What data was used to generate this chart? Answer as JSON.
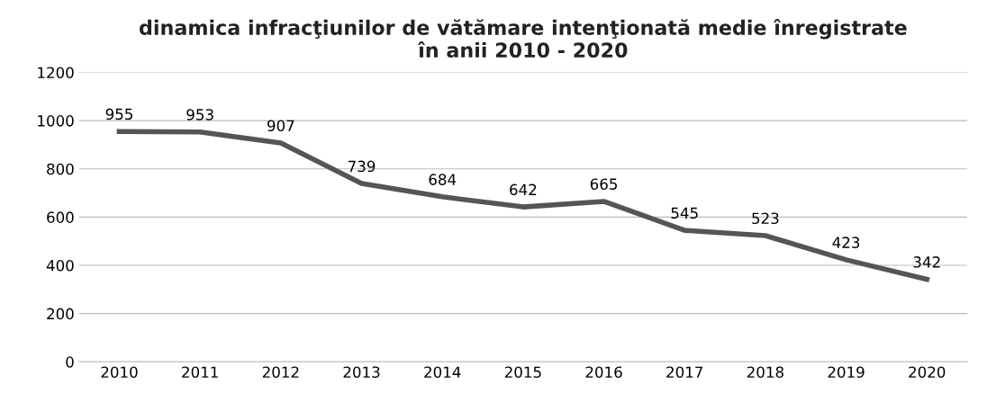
{
  "chart_data": {
    "type": "line",
    "title": "dinamica infracţiunilor de vătămare intenţionată medie înregistrate\nîn anii 2010 - 2020",
    "categories": [
      "2010",
      "2011",
      "2012",
      "2013",
      "2014",
      "2015",
      "2016",
      "2017",
      "2018",
      "2019",
      "2020"
    ],
    "series": [
      {
        "color": "#555555",
        "values": [
          955,
          953,
          907,
          739,
          684,
          642,
          665,
          545,
          523,
          423,
          342
        ]
      }
    ],
    "ylim": [
      0,
      1200
    ],
    "yticks": [
      0,
      200,
      400,
      600,
      800,
      1000,
      1200
    ],
    "grid": "y",
    "data_labels": true,
    "marker": "none",
    "line_style": "solid"
  }
}
